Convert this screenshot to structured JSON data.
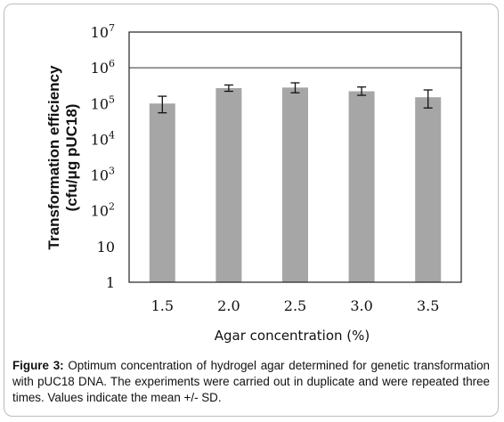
{
  "chart_data": {
    "type": "bar",
    "categories": [
      "1.5",
      "2.0",
      "2.5",
      "3.0",
      "3.5"
    ],
    "values": [
      100000,
      270000,
      280000,
      220000,
      150000
    ],
    "errors": [
      [
        55000,
        160000
      ],
      [
        220000,
        330000
      ],
      [
        200000,
        380000
      ],
      [
        170000,
        290000
      ],
      [
        75000,
        240000
      ]
    ],
    "ylabel_line1": "Transformation efficiency",
    "ylabel_line2": "(cfu/μg pUC18)",
    "xlabel": "Agar concentration (%)",
    "yscale": "log",
    "ylim": [
      1,
      10000000
    ],
    "yticks": [
      {
        "value": 1,
        "base": "1",
        "exp": ""
      },
      {
        "value": 10,
        "base": "10",
        "exp": ""
      },
      {
        "value": 100,
        "base": "10",
        "exp": "2"
      },
      {
        "value": 1000,
        "base": "10",
        "exp": "3"
      },
      {
        "value": 10000,
        "base": "10",
        "exp": "4"
      },
      {
        "value": 100000,
        "base": "10",
        "exp": "5"
      },
      {
        "value": 1000000,
        "base": "10",
        "exp": "6"
      },
      {
        "value": 10000000,
        "base": "10",
        "exp": "7"
      }
    ],
    "grid": "major horizontal at 10^6",
    "bar_color": "#a6a6a6"
  },
  "caption": {
    "label": "Figure 3:",
    "text": " Optimum concentration of hydrogel agar determined for genetic transformation with pUC18 DNA. The experiments were carried out in duplicate and were repeated three times. Values indicate the mean +/- SD."
  }
}
